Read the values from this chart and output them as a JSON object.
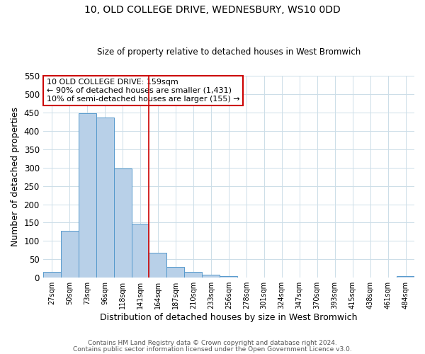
{
  "title": "10, OLD COLLEGE DRIVE, WEDNESBURY, WS10 0DD",
  "subtitle": "Size of property relative to detached houses in West Bromwich",
  "xlabel": "Distribution of detached houses by size in West Bromwich",
  "ylabel": "Number of detached properties",
  "bin_labels": [
    "27sqm",
    "50sqm",
    "73sqm",
    "96sqm",
    "118sqm",
    "141sqm",
    "164sqm",
    "187sqm",
    "210sqm",
    "233sqm",
    "256sqm",
    "278sqm",
    "301sqm",
    "324sqm",
    "347sqm",
    "370sqm",
    "393sqm",
    "415sqm",
    "438sqm",
    "461sqm",
    "484sqm"
  ],
  "bar_heights": [
    15,
    128,
    447,
    437,
    297,
    147,
    68,
    29,
    16,
    8,
    5,
    1,
    0,
    0,
    0,
    0,
    0,
    0,
    0,
    0,
    5
  ],
  "bar_color": "#b8d0e8",
  "bar_edge_color": "#5599cc",
  "vline_x_idx": 6,
  "vline_color": "#cc0000",
  "annotation_title": "10 OLD COLLEGE DRIVE: 159sqm",
  "annotation_line1": "← 90% of detached houses are smaller (1,431)",
  "annotation_line2": "10% of semi-detached houses are larger (155) →",
  "annotation_box_color": "#cc0000",
  "ylim": [
    0,
    550
  ],
  "yticks": [
    0,
    50,
    100,
    150,
    200,
    250,
    300,
    350,
    400,
    450,
    500,
    550
  ],
  "footer1": "Contains HM Land Registry data © Crown copyright and database right 2024.",
  "footer2": "Contains public sector information licensed under the Open Government Licence v3.0.",
  "bg_color": "#ffffff",
  "grid_color": "#ccdde8"
}
